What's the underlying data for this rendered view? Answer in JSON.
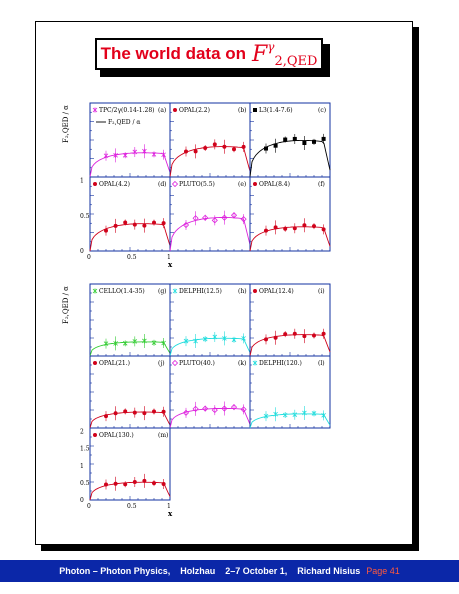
{
  "title": {
    "text": "The world data on",
    "symbol_base": "F",
    "symbol_sup": "γ",
    "symbol_sub": "2,QED"
  },
  "colors": {
    "title": "#e2001a",
    "frame": "#1230a0",
    "footer_bg": "#0b27a8",
    "page": "#ff5a3c"
  },
  "footer": {
    "text": "Photon – Photon Physics,    Holzhau    2–7 October 1,    Richard Nisius",
    "page": "Page 41"
  },
  "top_group": {
    "ylabel": "F₂,QED / α",
    "xlabel": "x",
    "xticks": [
      "0",
      "0.5",
      "1"
    ],
    "yticks": [
      "0",
      "0.5",
      "1"
    ],
    "legend_line": "F₂,QED / α",
    "panels": [
      {
        "label": "TPC/2γ(0.14-1.28)",
        "tag": "(a)",
        "color": "#dd22dd",
        "marker": "star"
      },
      {
        "label": "OPAL(2.2)",
        "tag": "(b)",
        "color": "#d0021b",
        "marker": "dot"
      },
      {
        "label": "L3(1.4-7.6)",
        "tag": "(c)",
        "color": "#000000",
        "marker": "square"
      },
      {
        "label": "OPAL(4.2)",
        "tag": "(d)",
        "color": "#d0021b",
        "marker": "dot"
      },
      {
        "label": "PLUTO(5.5)",
        "tag": "(e)",
        "color": "#dd22dd",
        "marker": "diamond"
      },
      {
        "label": "OPAL(8.4)",
        "tag": "(f)",
        "color": "#d0021b",
        "marker": "dot"
      }
    ]
  },
  "bottom_group": {
    "ylabel": "F₂,QED / α",
    "xlabel": "x",
    "xticks": [
      "0",
      "0.5",
      "1"
    ],
    "yticks": [
      "0",
      "0.5",
      "1",
      "1.5",
      "2"
    ],
    "panels": [
      {
        "label": "CELLO(1.4-35)",
        "tag": "(g)",
        "color": "#33cc33",
        "marker": "star"
      },
      {
        "label": "DELPHI(12.5)",
        "tag": "(h)",
        "color": "#22dddd",
        "marker": "star"
      },
      {
        "label": "OPAL(12.4)",
        "tag": "(i)",
        "color": "#d0021b",
        "marker": "dot"
      },
      {
        "label": "OPAL(21.)",
        "tag": "(j)",
        "color": "#d0021b",
        "marker": "dot"
      },
      {
        "label": "PLUTO(40.)",
        "tag": "(k)",
        "color": "#dd22dd",
        "marker": "diamond"
      },
      {
        "label": "DELPHI(120.)",
        "tag": "(l)",
        "color": "#22dddd",
        "marker": "star"
      },
      {
        "label": "OPAL(130.)",
        "tag": "(m)",
        "color": "#d0021b",
        "marker": "dot"
      }
    ]
  }
}
